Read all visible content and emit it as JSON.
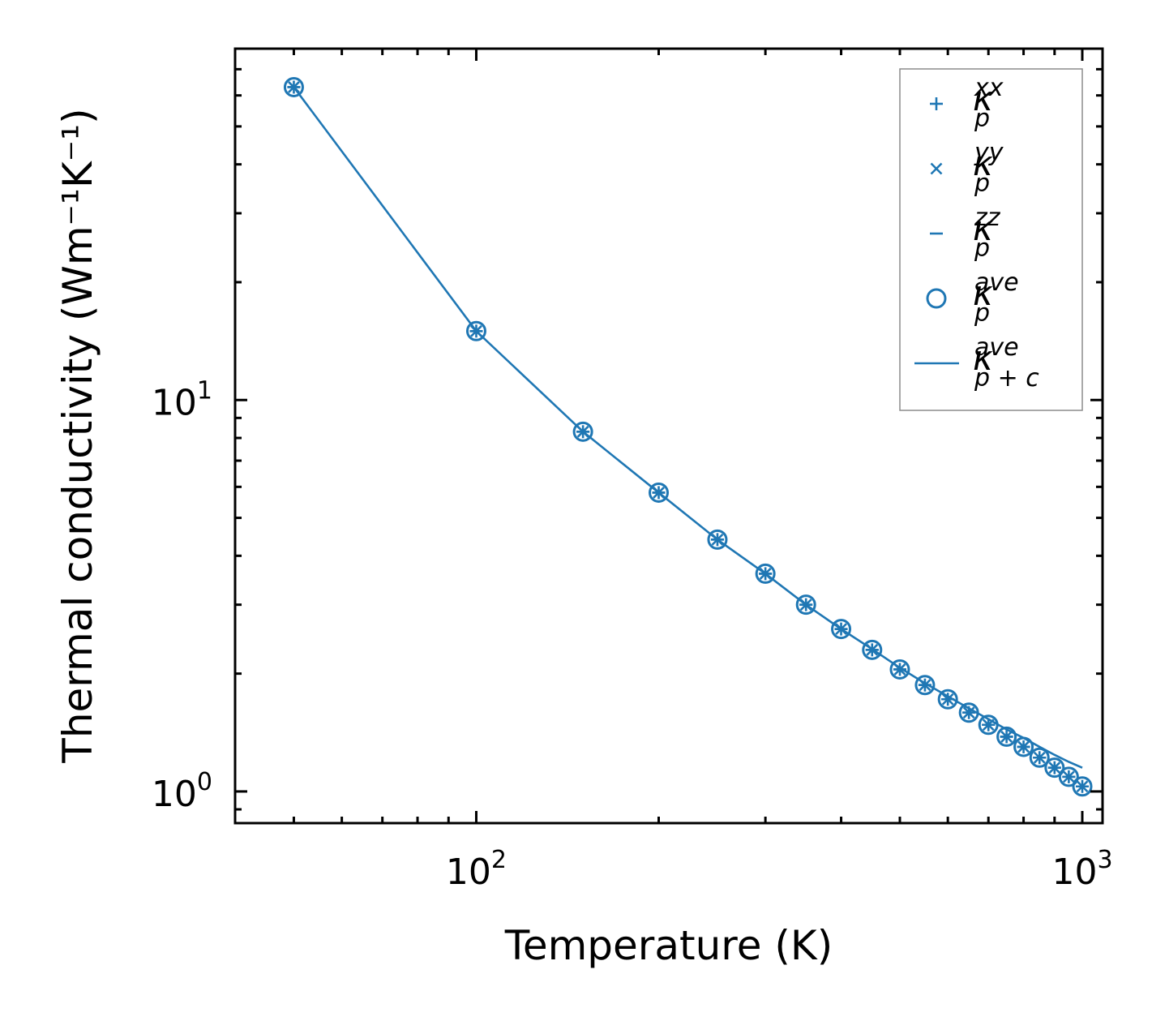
{
  "chart_data": {
    "type": "scatter",
    "title": "",
    "xlabel": "Temperature (K)",
    "ylabel": "Thermal conductivity (Wm⁻¹K⁻¹)",
    "xscale": "log",
    "yscale": "log",
    "xlim": [
      40,
      1080
    ],
    "ylim": [
      0.83,
      79
    ],
    "x_ticks": [
      {
        "base": "10",
        "exp": "2",
        "value": 100
      },
      {
        "base": "10",
        "exp": "3",
        "value": 1000
      }
    ],
    "y_ticks": [
      {
        "base": "10",
        "exp": "0",
        "value": 1
      },
      {
        "base": "10",
        "exp": "1",
        "value": 10
      }
    ],
    "x": [
      50,
      100,
      150,
      200,
      250,
      300,
      350,
      400,
      450,
      500,
      550,
      600,
      650,
      700,
      750,
      800,
      850,
      900,
      950,
      1000
    ],
    "series": [
      {
        "name": "kappa_p_xx",
        "legend": {
          "base": "κ",
          "sub": "p",
          "sup": "xx"
        },
        "marker": "plus",
        "values": [
          63.0,
          15.0,
          8.3,
          5.8,
          4.4,
          3.6,
          3.0,
          2.6,
          2.3,
          2.05,
          1.87,
          1.72,
          1.59,
          1.48,
          1.38,
          1.3,
          1.22,
          1.15,
          1.09,
          1.03
        ]
      },
      {
        "name": "kappa_p_yy",
        "legend": {
          "base": "κ",
          "sub": "p",
          "sup": "yy"
        },
        "marker": "x",
        "values": [
          63.0,
          15.0,
          8.3,
          5.8,
          4.4,
          3.6,
          3.0,
          2.6,
          2.3,
          2.05,
          1.87,
          1.72,
          1.59,
          1.48,
          1.38,
          1.3,
          1.22,
          1.15,
          1.09,
          1.03
        ]
      },
      {
        "name": "kappa_p_zz",
        "legend": {
          "base": "κ",
          "sub": "p",
          "sup": "zz"
        },
        "marker": "hline",
        "values": [
          63.0,
          15.0,
          8.3,
          5.8,
          4.4,
          3.6,
          3.0,
          2.6,
          2.3,
          2.05,
          1.87,
          1.72,
          1.59,
          1.48,
          1.38,
          1.3,
          1.22,
          1.15,
          1.09,
          1.03
        ]
      },
      {
        "name": "kappa_p_ave",
        "legend": {
          "base": "κ",
          "sub": "p",
          "sup": "ave"
        },
        "marker": "circle",
        "values": [
          63.0,
          15.0,
          8.3,
          5.8,
          4.4,
          3.6,
          3.0,
          2.6,
          2.3,
          2.05,
          1.87,
          1.72,
          1.59,
          1.48,
          1.38,
          1.3,
          1.22,
          1.15,
          1.09,
          1.03
        ]
      },
      {
        "name": "kappa_p+c_ave",
        "legend": {
          "base": "κ",
          "sub": "p + c",
          "sup": "ave"
        },
        "marker": "line",
        "values": [
          63.0,
          15.0,
          8.3,
          5.8,
          4.4,
          3.6,
          3.0,
          2.6,
          2.31,
          2.07,
          1.89,
          1.75,
          1.63,
          1.53,
          1.44,
          1.37,
          1.3,
          1.24,
          1.19,
          1.15
        ]
      }
    ],
    "legend_position": "top-right",
    "grid": false
  },
  "colors": {
    "series": "#1f77b4",
    "axis": "#000000",
    "legend_border": "#8c8c8c"
  }
}
